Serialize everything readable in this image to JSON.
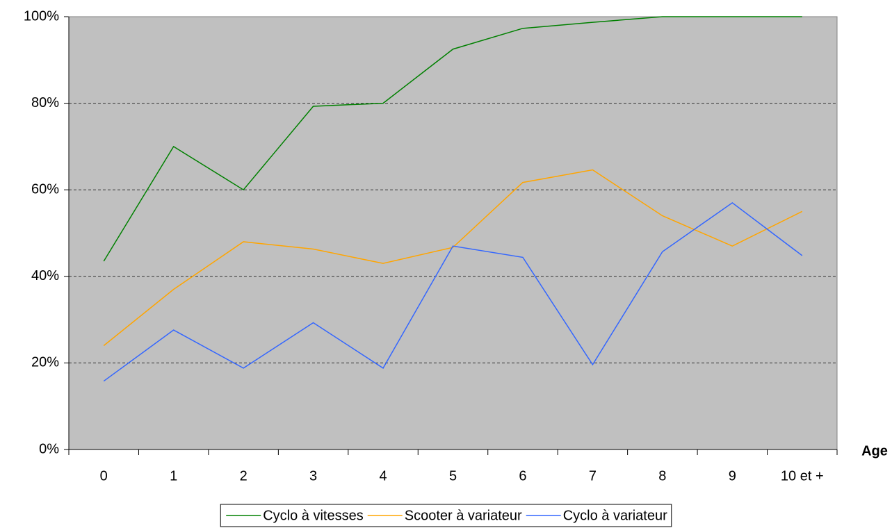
{
  "chart_data": {
    "type": "line",
    "x_label": "Age",
    "categories": [
      "0",
      "1",
      "2",
      "3",
      "4",
      "5",
      "6",
      "7",
      "8",
      "9",
      "10 et +"
    ],
    "series": [
      {
        "name": "Cyclo à vitesses",
        "color": "#008000",
        "values": [
          43.5,
          70,
          60,
          79.3,
          80,
          92.5,
          97.3,
          98.7,
          100,
          100,
          100
        ]
      },
      {
        "name": "Scooter à variateur",
        "color": "#ffa500",
        "values": [
          24,
          37,
          48,
          46.3,
          43,
          46.7,
          61.7,
          64.6,
          54,
          47,
          55
        ]
      },
      {
        "name": "Cyclo à variateur",
        "color": "#3366ff",
        "values": [
          15.8,
          27.6,
          18.8,
          29.3,
          18.8,
          47,
          44.4,
          19.6,
          45.7,
          57,
          44.8
        ]
      }
    ],
    "ylim": [
      0,
      100
    ],
    "yticks": [
      {
        "value": 0,
        "label": "0%"
      },
      {
        "value": 20,
        "label": "20%"
      },
      {
        "value": 40,
        "label": "40%"
      },
      {
        "value": 60,
        "label": "60%"
      },
      {
        "value": 80,
        "label": "80%"
      },
      {
        "value": 100,
        "label": "100%"
      }
    ],
    "grid": true,
    "legend": "bottom"
  }
}
